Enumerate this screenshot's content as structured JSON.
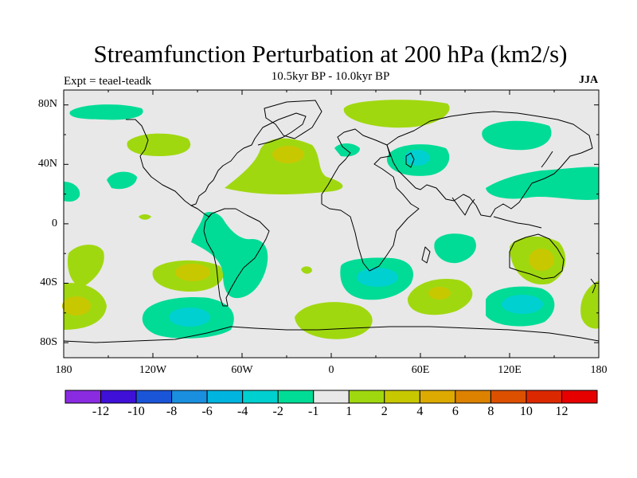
{
  "title": "Streamfunction Perturbation at 200 hPa (km2/s)",
  "subtitle": "10.5kyr BP - 10.0kyr BP",
  "left_label": "Expt = teael-teadk",
  "right_label": "JJA",
  "lat_labels": [
    "80N",
    "40N",
    "0",
    "40S",
    "80S"
  ],
  "lon_labels": [
    "180",
    "120W",
    "60W",
    "0",
    "60E",
    "120E",
    "180"
  ],
  "colorbar": {
    "labels": [
      "-12",
      "-10",
      "-8",
      "-6",
      "-4",
      "-2",
      "-1",
      "1",
      "2",
      "4",
      "6",
      "8",
      "10",
      "12"
    ],
    "colors": [
      "#8a2be2",
      "#3f10d8",
      "#1a55d8",
      "#1a8fdf",
      "#00b4e0",
      "#00d0d0",
      "#00dc96",
      "#e8e8e8",
      "#a0d810",
      "#c8c800",
      "#dcaa00",
      "#dc8200",
      "#dc5000",
      "#dc2800",
      "#e60000"
    ]
  },
  "colors": {
    "background": "#e8e8e8",
    "pos1": "#a0d810",
    "pos2": "#c8c800",
    "pos3": "#dcaa00",
    "neg1": "#00dc96",
    "neg2": "#00d0d0"
  }
}
